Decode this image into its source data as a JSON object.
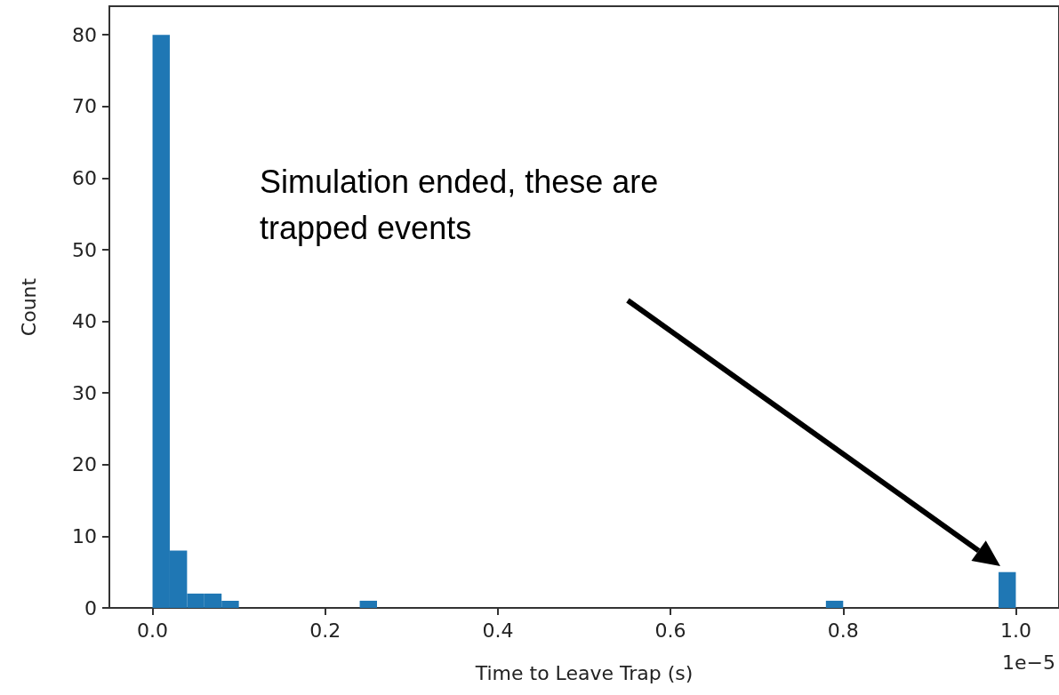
{
  "chart_data": {
    "type": "histogram",
    "xlabel": "Time to Leave Trap (s)",
    "ylabel": "Count",
    "color": "#1f77b4",
    "bins": [
      0,
      0.02,
      0.04,
      0.06,
      0.08,
      0.1,
      0.12,
      0.14,
      0.16,
      0.18,
      0.2,
      0.22,
      0.24,
      0.26,
      0.28,
      0.3,
      0.32,
      0.34,
      0.36,
      0.38,
      0.4,
      0.42,
      0.44,
      0.46,
      0.48,
      0.5,
      0.52,
      0.54,
      0.56,
      0.58,
      0.6,
      0.62,
      0.64,
      0.66,
      0.68,
      0.7,
      0.72,
      0.74,
      0.76,
      0.78,
      0.8,
      0.82,
      0.84,
      0.86,
      0.88,
      0.9,
      0.92,
      0.94,
      0.96,
      0.98,
      1.0
    ],
    "values": [
      80,
      8,
      2,
      2,
      1,
      0,
      0,
      0,
      0,
      0,
      0,
      0,
      1,
      0,
      0,
      0,
      0,
      0,
      0,
      0,
      0,
      0,
      0,
      0,
      0,
      0,
      0,
      0,
      0,
      0,
      0,
      0,
      0,
      0,
      0,
      0,
      0,
      0,
      0,
      1,
      0,
      0,
      0,
      0,
      0,
      0,
      0,
      0,
      0,
      5
    ],
    "xlim": [
      -0.05,
      1.05
    ],
    "xticks": [
      {
        "value": 0,
        "label": "0.0"
      },
      0.2,
      0.4,
      0.6,
      0.8,
      {
        "value": 1,
        "label": "1.0"
      }
    ],
    "ylim": [
      0,
      84
    ],
    "yticks": [
      0,
      10,
      20,
      30,
      40,
      50,
      60,
      70,
      80
    ],
    "grid": false,
    "annotations": [
      "1e−5",
      "Simulation ended, these are trapped events"
    ]
  }
}
